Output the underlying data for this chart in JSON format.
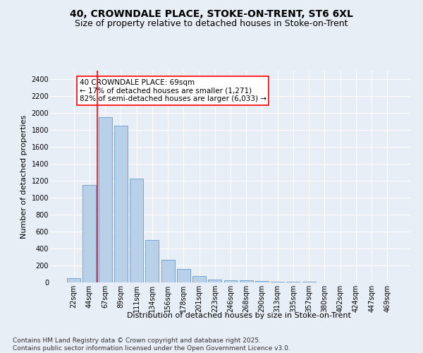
{
  "title_line1": "40, CROWNDALE PLACE, STOKE-ON-TRENT, ST6 6XL",
  "title_line2": "Size of property relative to detached houses in Stoke-on-Trent",
  "xlabel": "Distribution of detached houses by size in Stoke-on-Trent",
  "ylabel": "Number of detached properties",
  "categories": [
    "22sqm",
    "44sqm",
    "67sqm",
    "89sqm",
    "111sqm",
    "134sqm",
    "156sqm",
    "178sqm",
    "201sqm",
    "223sqm",
    "246sqm",
    "268sqm",
    "290sqm",
    "313sqm",
    "335sqm",
    "357sqm",
    "380sqm",
    "402sqm",
    "424sqm",
    "447sqm",
    "469sqm"
  ],
  "values": [
    50,
    1150,
    1950,
    1850,
    1225,
    500,
    270,
    160,
    75,
    30,
    28,
    22,
    20,
    10,
    8,
    5,
    4,
    2,
    2,
    1,
    1
  ],
  "bar_color": "#b8d0e8",
  "bar_edge_color": "#6699cc",
  "annotation_text": "40 CROWNDALE PLACE: 69sqm\n← 17% of detached houses are smaller (1,271)\n82% of semi-detached houses are larger (6,033) →",
  "annotation_box_color": "white",
  "annotation_box_edge": "red",
  "red_line_bar_index": 2,
  "ylim": [
    0,
    2500
  ],
  "yticks": [
    0,
    200,
    400,
    600,
    800,
    1000,
    1200,
    1400,
    1600,
    1800,
    2000,
    2200,
    2400
  ],
  "footer_line1": "Contains HM Land Registry data © Crown copyright and database right 2025.",
  "footer_line2": "Contains public sector information licensed under the Open Government Licence v3.0.",
  "background_color": "#e8eef5",
  "grid_color": "#ffffff",
  "title_fontsize": 10,
  "subtitle_fontsize": 9,
  "label_fontsize": 8,
  "tick_fontsize": 7,
  "footer_fontsize": 6.5,
  "annotation_fontsize": 7.5
}
